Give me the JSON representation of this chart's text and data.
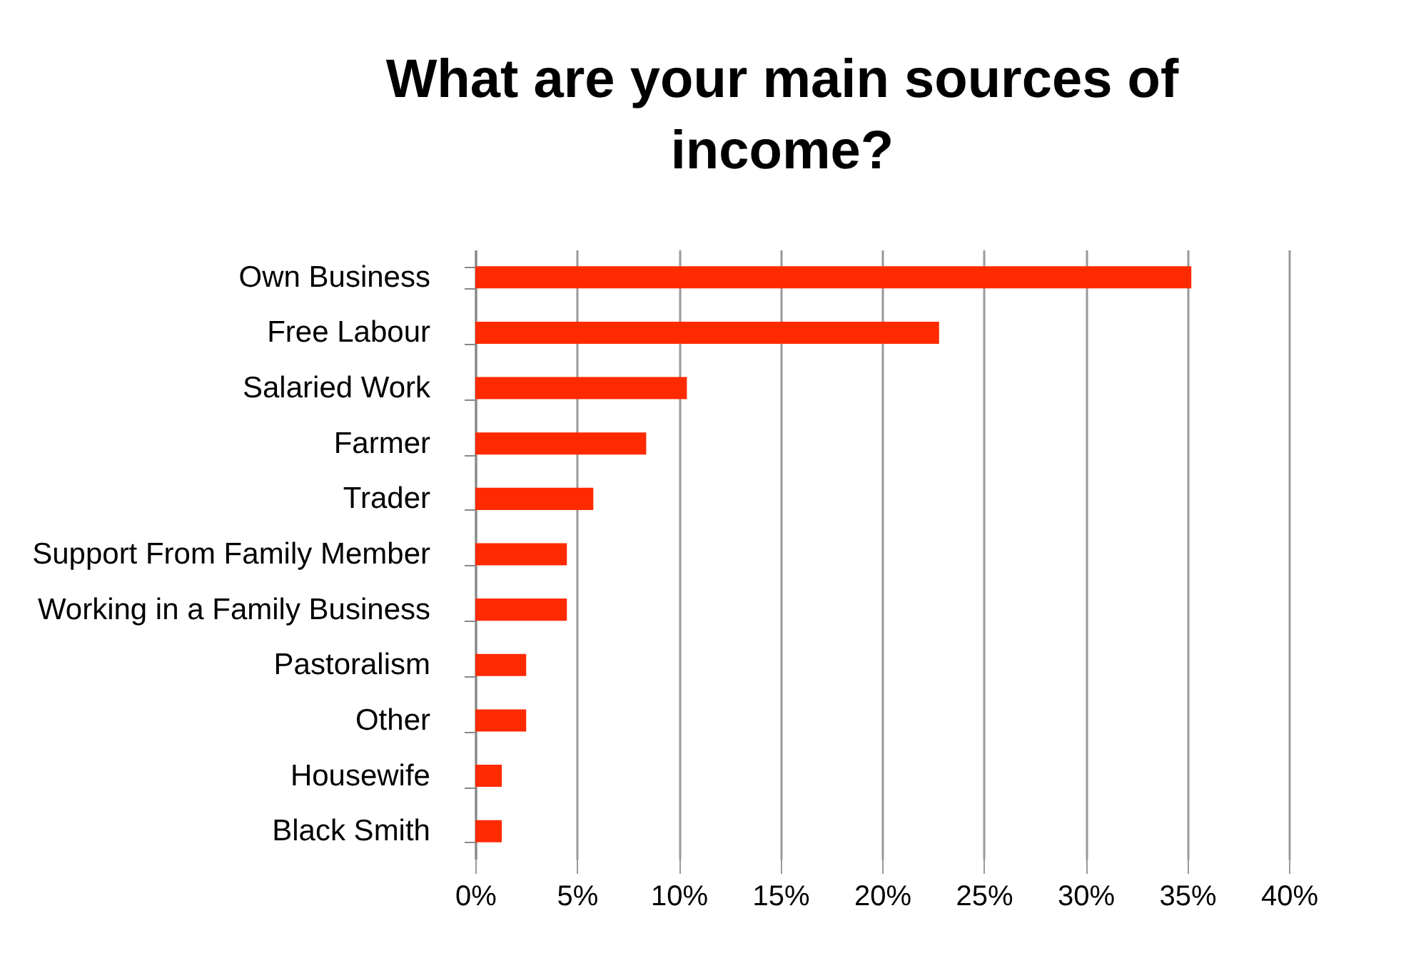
{
  "chart_data": {
    "type": "bar",
    "orientation": "horizontal",
    "title": [
      "What are your main sources of",
      "income?"
    ],
    "categories": [
      "Own Business",
      "Free Labour",
      "Salaried Work",
      "Farmer",
      "Trader",
      "Support From Family Member",
      "Working in a Family Business",
      "Pastoralism",
      "Other",
      "Housewife",
      "Black Smith"
    ],
    "values": [
      35.2,
      22.8,
      10.4,
      8.4,
      5.8,
      4.5,
      4.5,
      2.5,
      2.5,
      1.3,
      1.3
    ],
    "color": "#ff2a00",
    "xlim": [
      0,
      40
    ],
    "xticks": [
      {
        "value": 0,
        "label": "0%"
      },
      {
        "value": 5,
        "label": "5%"
      },
      {
        "value": 10,
        "label": "10%"
      },
      {
        "value": 15,
        "label": "15%"
      },
      {
        "value": 20,
        "label": "20%"
      },
      {
        "value": 25,
        "label": "25%"
      },
      {
        "value": 30,
        "label": "30%"
      },
      {
        "value": 35,
        "label": "35%"
      },
      {
        "value": 40,
        "label": "40%"
      }
    ],
    "grid": "x"
  }
}
